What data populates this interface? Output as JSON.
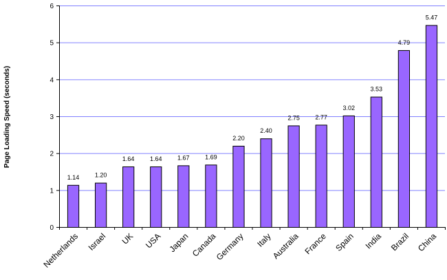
{
  "chart_data": {
    "type": "bar",
    "title": "",
    "xlabel": "",
    "ylabel": "Page Loading Speed (seconds)",
    "ylim": [
      0,
      6
    ],
    "yticks": [
      "0",
      "1",
      "2",
      "3",
      "4",
      "5",
      "6"
    ],
    "grid": true,
    "bar_color": "#9966ff",
    "bar_edge_color": "#000000",
    "grid_color": "#8080ff",
    "categories": [
      "Netherlands",
      "Israel",
      "UK",
      "USA",
      "Japan",
      "Canada",
      "Germany",
      "Italy",
      "Australia",
      "France",
      "Spain",
      "India",
      "Brazil",
      "China"
    ],
    "values": [
      1.14,
      1.2,
      1.64,
      1.64,
      1.67,
      1.69,
      2.2,
      2.4,
      2.75,
      2.77,
      3.02,
      3.53,
      4.79,
      5.47
    ],
    "value_labels": [
      "1.14",
      "1.20",
      "1.64",
      "1.64",
      "1.67",
      "1.69",
      "2.20",
      "2.40",
      "2.75",
      "2.77",
      "3.02",
      "3.53",
      "4.79",
      "5.47"
    ]
  }
}
